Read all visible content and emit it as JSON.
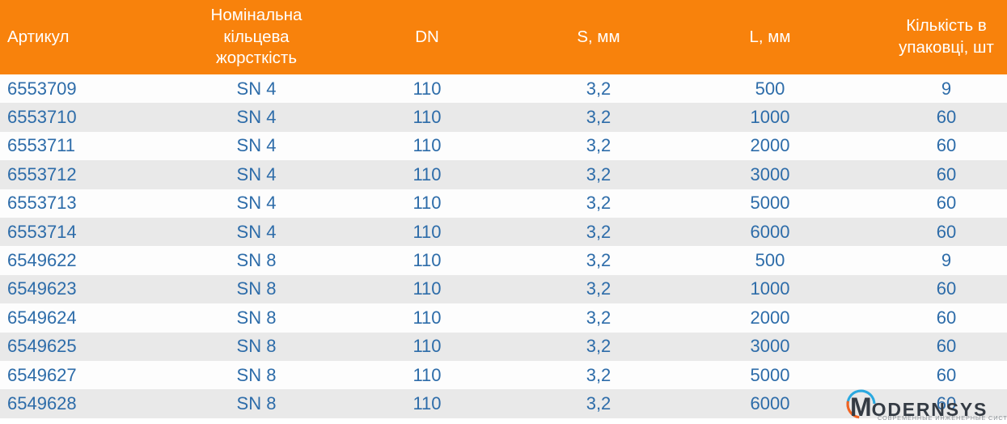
{
  "table": {
    "header_bg": "#f8820c",
    "header_text_color": "#ffffff",
    "cell_text_color": "#2d6ca9",
    "row_bg": "#fdfdfd",
    "alt_row_bg": "#e9e9e9",
    "columns": [
      {
        "label": "Артикул"
      },
      {
        "label": "Номінальна кільцева жорсткість"
      },
      {
        "label": "DN"
      },
      {
        "label": "S, мм"
      },
      {
        "label": "L, мм"
      },
      {
        "label": "Кількість в упаковці, шт"
      }
    ],
    "rows": [
      [
        "6553709",
        "SN 4",
        "110",
        "3,2",
        "500",
        "9"
      ],
      [
        "6553710",
        "SN 4",
        "110",
        "3,2",
        "1000",
        "60"
      ],
      [
        "6553711",
        "SN 4",
        "110",
        "3,2",
        "2000",
        "60"
      ],
      [
        "6553712",
        "SN 4",
        "110",
        "3,2",
        "3000",
        "60"
      ],
      [
        "6553713",
        "SN 4",
        "110",
        "3,2",
        "5000",
        "60"
      ],
      [
        "6553714",
        "SN 4",
        "110",
        "3,2",
        "6000",
        "60"
      ],
      [
        "6549622",
        "SN 8",
        "110",
        "3,2",
        "500",
        "9"
      ],
      [
        "6549623",
        "SN 8",
        "110",
        "3,2",
        "1000",
        "60"
      ],
      [
        "6549624",
        "SN 8",
        "110",
        "3,2",
        "2000",
        "60"
      ],
      [
        "6549625",
        "SN 8",
        "110",
        "3,2",
        "3000",
        "60"
      ],
      [
        "6549627",
        "SN 8",
        "110",
        "3,2",
        "5000",
        "60"
      ],
      [
        "6549628",
        "SN 8",
        "110",
        "3,2",
        "6000",
        "60"
      ]
    ]
  },
  "logo": {
    "company": "Modernsys",
    "wordmark_first": "M",
    "wordmark_rest": "ODERNSYS",
    "tagline": "СОВРЕМЕННЫЕ ИНЖЕНЕРНЫЕ СИСТЕМЫ",
    "wordmark_color": "#343b44",
    "tagline_color": "#8d9298",
    "arc_top_color": "#2aa9e0",
    "arc_bottom_color": "#f26322"
  }
}
